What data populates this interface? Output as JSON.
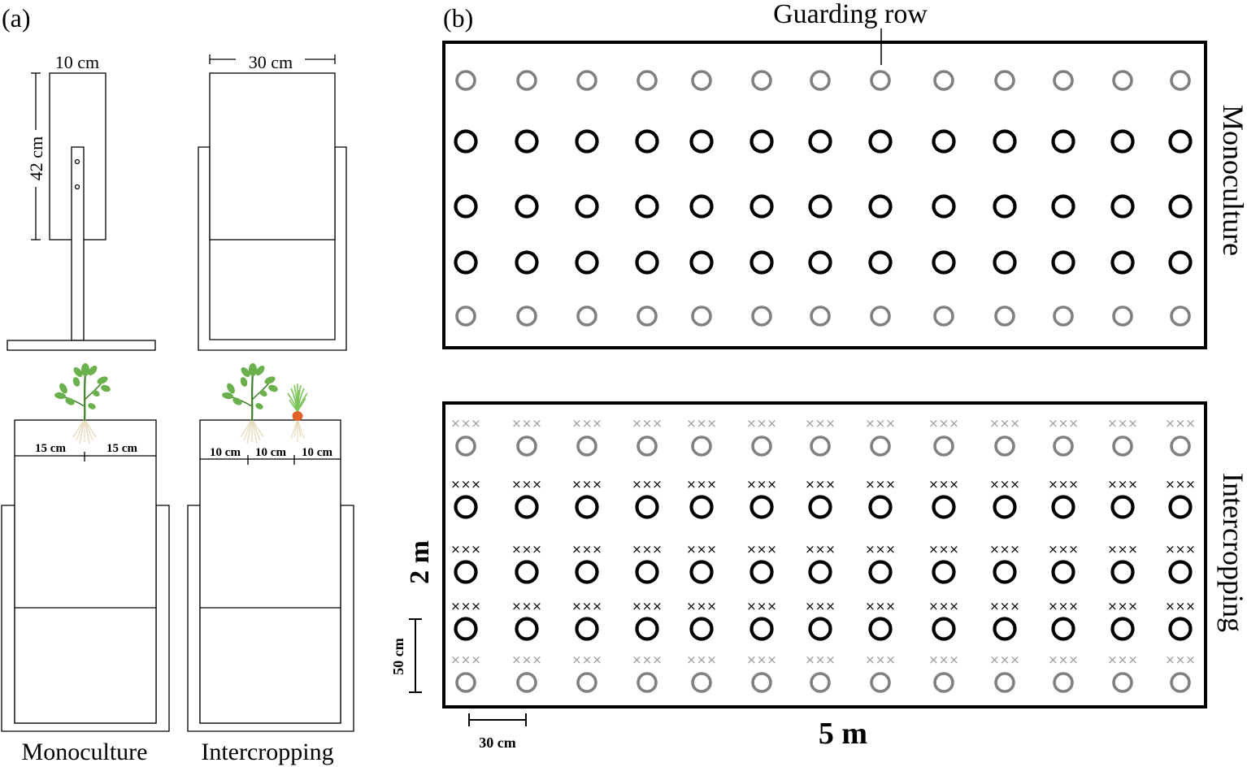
{
  "panel_a": {
    "label": "(a)",
    "dim_width_mono": "10 cm",
    "dim_width_inter": "30 cm",
    "dim_height": "42 cm",
    "mono_spacing_left": "15 cm",
    "mono_spacing_right": "15 cm",
    "inter_spacing_1": "10 cm",
    "inter_spacing_2": "10 cm",
    "inter_spacing_3": "10 cm",
    "caption_mono": "Monoculture",
    "caption_inter": "Intercropping"
  },
  "panel_b": {
    "label": "(b)",
    "guarding_row_label": "Guarding row",
    "mono_label": "Monoculture",
    "inter_label": "Intercropping",
    "plot_height": "2 m",
    "plot_width": "5 m",
    "row_spacing": "50 cm",
    "plant_spacing": "30 cm",
    "mark_text": "×××",
    "plants_per_row": 13,
    "row_types": [
      "guard",
      "main",
      "main",
      "main",
      "guard"
    ]
  },
  "colors": {
    "ink": "#000000",
    "guard_ring": "#808080",
    "guard_mark": "#9a9a9a",
    "leaf": "#6ab04c",
    "leaf_dark": "#3f7f2a",
    "root": "#e8dcc0",
    "grass": "#7cc45a",
    "tuber": "#e0602c"
  }
}
